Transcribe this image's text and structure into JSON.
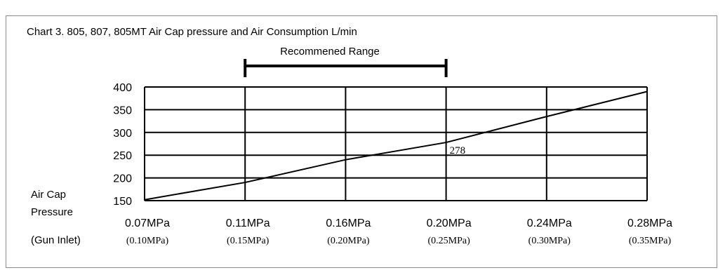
{
  "chart_data": {
    "type": "line",
    "title": "Chart 3. 805, 807, 805MT Air Cap pressure and Air Consumption L/min",
    "annotation_range": {
      "label": "Recommened Range",
      "from": "0.11MPa",
      "to": "0.20MPa"
    },
    "ylabel_lines": [
      "Air Cap",
      "Pressure"
    ],
    "secondary_xlabel": "(Gun Inlet)",
    "categories": [
      "0.07MPa",
      "0.11MPa",
      "0.16MPa",
      "0.20MPa",
      "0.24MPa",
      "0.28MPa"
    ],
    "secondary_categories": [
      "(0.10MPa)",
      "(0.15MPa)",
      "(0.20MPa)",
      "(0.25MPa)",
      "(0.30MPa)",
      "(0.35MPa)"
    ],
    "values": [
      152,
      190,
      240,
      278,
      335,
      390
    ],
    "data_labels": [
      {
        "index": 3,
        "text": "278"
      }
    ],
    "ylim": [
      150,
      400
    ],
    "yticks": [
      "150",
      "200",
      "250",
      "300",
      "350",
      "400"
    ],
    "grid": true,
    "legend": "none",
    "colors": {
      "line": "#000000",
      "grid": "#000000",
      "frame": "#8c8c8c"
    }
  }
}
